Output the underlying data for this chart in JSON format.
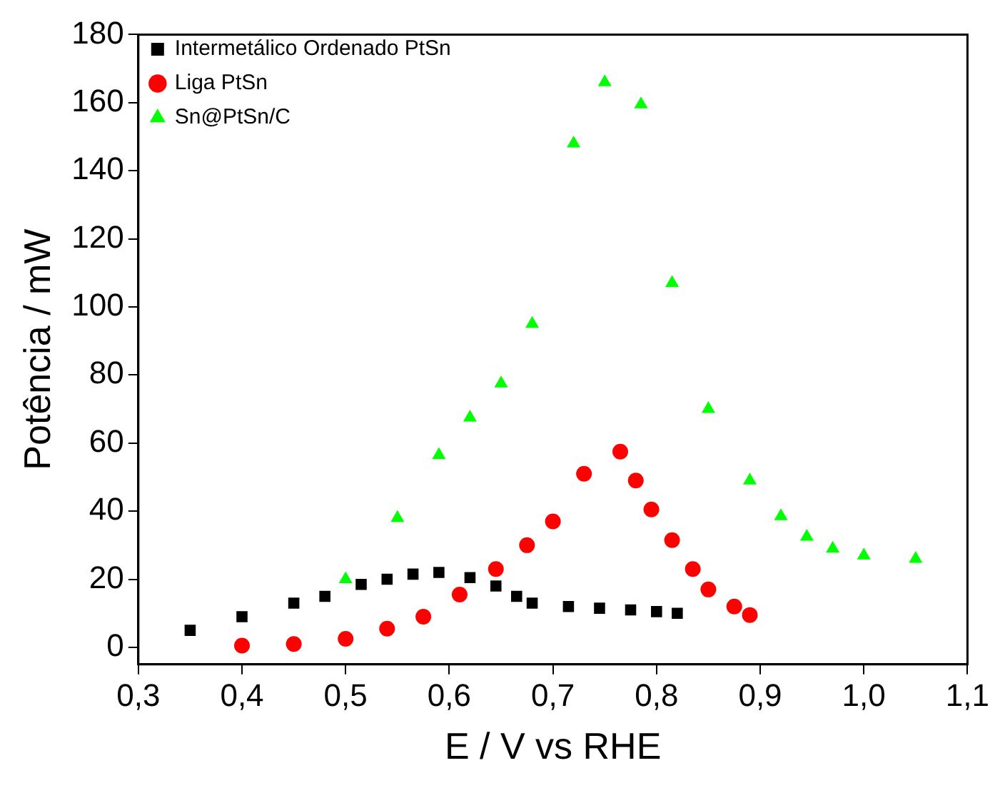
{
  "chart_data": {
    "type": "scatter",
    "xlabel": "E / V vs RHE",
    "ylabel": "Potência / mW",
    "xlim": [
      0.3,
      1.1
    ],
    "ylim": [
      -5,
      180
    ],
    "xticks": [
      {
        "value": 0.3,
        "label": "0,3"
      },
      {
        "value": 0.4,
        "label": "0,4"
      },
      {
        "value": 0.5,
        "label": "0,5"
      },
      {
        "value": 0.6,
        "label": "0,6"
      },
      {
        "value": 0.7,
        "label": "0,7"
      },
      {
        "value": 0.8,
        "label": "0,8"
      },
      {
        "value": 0.9,
        "label": "0,9"
      },
      {
        "value": 1.0,
        "label": "1,0"
      },
      {
        "value": 1.1,
        "label": "1,1"
      }
    ],
    "yticks": [
      0,
      20,
      40,
      60,
      80,
      100,
      120,
      140,
      160,
      180
    ],
    "grid": false,
    "legend": "top left",
    "series": [
      {
        "name": "Intermetálico Ordenado PtSn",
        "color": "#000000",
        "marker": "square",
        "x": [
          0.35,
          0.4,
          0.45,
          0.48,
          0.515,
          0.54,
          0.565,
          0.59,
          0.62,
          0.645,
          0.665,
          0.68,
          0.715,
          0.745,
          0.775,
          0.8,
          0.82
        ],
        "values": [
          5,
          9,
          13,
          15,
          18.5,
          20,
          21.5,
          22,
          20.5,
          18,
          15,
          13,
          12,
          11.5,
          11,
          10.5,
          10
        ]
      },
      {
        "name": "Liga PtSn",
        "color": "#ff0000",
        "marker": "circle",
        "x": [
          0.4,
          0.45,
          0.5,
          0.54,
          0.575,
          0.61,
          0.645,
          0.675,
          0.7,
          0.73,
          0.765,
          0.78,
          0.795,
          0.815,
          0.835,
          0.85,
          0.875,
          0.89
        ],
        "values": [
          0.5,
          1,
          2.5,
          5.5,
          9,
          15.5,
          23,
          30,
          37,
          51,
          57.5,
          49,
          40.5,
          31.5,
          23,
          17,
          12,
          9.5
        ]
      },
      {
        "name": "Sn@PtSn/C",
        "color": "#00ff00",
        "marker": "triangle",
        "x": [
          0.5,
          0.55,
          0.59,
          0.62,
          0.65,
          0.68,
          0.72,
          0.75,
          0.785,
          0.815,
          0.85,
          0.89,
          0.92,
          0.945,
          0.97,
          1.0,
          1.05
        ],
        "values": [
          20,
          38,
          56.5,
          67.5,
          77.5,
          95,
          148,
          166,
          159.5,
          107,
          70,
          49,
          38.5,
          32.5,
          29,
          27,
          26
        ]
      }
    ]
  }
}
